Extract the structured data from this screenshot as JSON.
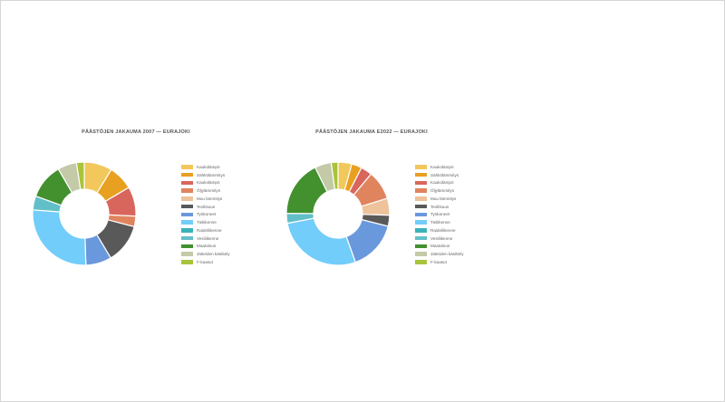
{
  "colors": {
    "background": "#ffffff",
    "title_text": "#555555",
    "legend_text": "#666666",
    "slice_border": "#ffffff"
  },
  "chart_data": [
    {
      "type": "pie",
      "donut": true,
      "title": "PÄÄSTÖJEN JAKAUMA 2007 — EURAJOKI",
      "legend_position": "right",
      "categories": [
        "Kaukolämpö",
        "Sähkölämmitys",
        "Kaukolämpö",
        "Öljylämmitys",
        "Muu lämmitys",
        "Teollisuus",
        "Työkoneet",
        "Tieliikenne",
        "Raideliikenne",
        "Vesiliikenne",
        "Maatalous",
        "Jätteiden käsittely",
        "F-kaasut"
      ],
      "values": [
        9,
        8,
        9.5,
        3.4,
        0,
        12.7,
        8.3,
        27.4,
        0,
        4.5,
        11.4,
        6.1,
        2.5
      ],
      "colors": [
        "#f2c75c",
        "#e8a020",
        "#d9665c",
        "#e0845e",
        "#eec29a",
        "#595959",
        "#6a98dc",
        "#72cdfa",
        "#3bb3b8",
        "#62bfc8",
        "#43902f",
        "#c4c9a8",
        "#a8c43a"
      ]
    },
    {
      "type": "pie",
      "donut": true,
      "title": "PÄÄSTÖJEN JAKAUMA E2022 — EURAJOKI",
      "legend_position": "right",
      "categories": [
        "Kaukolämpö",
        "Sähkölämmitys",
        "Kaukolämpö",
        "Öljylämmitys",
        "Muu lämmitys",
        "Teollisuus",
        "Työkoneet",
        "Tieliikenne",
        "Raideliikenne",
        "Vesiliikenne",
        "Maatalous",
        "Jätteiden käsittely",
        "F-kaasut"
      ],
      "values": [
        4.5,
        3.3,
        3.7,
        9.5,
        5.5,
        3.6,
        16.2,
        28.6,
        0,
        3.2,
        18.3,
        5.4,
        2.2
      ],
      "colors": [
        "#f2c75c",
        "#e8a020",
        "#d9665c",
        "#e0845e",
        "#eec29a",
        "#595959",
        "#6a98dc",
        "#72cdfa",
        "#3bb3b8",
        "#62bfc8",
        "#43902f",
        "#c4c9a8",
        "#a8c43a"
      ]
    }
  ]
}
